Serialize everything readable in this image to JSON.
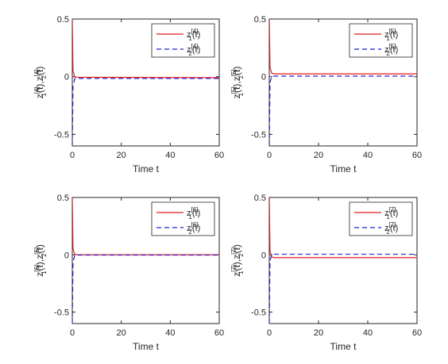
{
  "colors": {
    "series1": "#e31a1c",
    "series2": "#1f1fd6",
    "axis": "#262626"
  },
  "chart_data": [
    {
      "type": "line",
      "index": "4",
      "xlabel": "Time t",
      "ylabel": {
        "base1": "z",
        "sub1": "1",
        "sup1": "[4]",
        "mid": "(t),",
        "base2": "z",
        "sub2": "2",
        "sup2": "[4]",
        "end": "(t)"
      },
      "xlim": [
        0,
        60
      ],
      "ylim": [
        -0.6,
        0.5
      ],
      "xticks": [
        "0",
        "20",
        "40",
        "60"
      ],
      "yticks": [
        "-0.5",
        "0",
        "0.5"
      ],
      "legend_position": "top-right",
      "series": [
        {
          "label": {
            "base": "z",
            "sub": "1",
            "sup": "[4]",
            "end": "(t)"
          },
          "style": "solid",
          "x": [
            0,
            0.3,
            1,
            2,
            60
          ],
          "y": [
            0.5,
            0.05,
            -0.003,
            -0.005,
            -0.008
          ]
        },
        {
          "label": {
            "base": "z",
            "sub": "2",
            "sup": "[4]",
            "end": "(t)"
          },
          "style": "dashed",
          "x": [
            0,
            0.3,
            1,
            2,
            60
          ],
          "y": [
            -0.6,
            -0.08,
            -0.018,
            -0.015,
            -0.015
          ]
        }
      ]
    },
    {
      "type": "line",
      "index": "5",
      "xlabel": "Time t",
      "ylabel": {
        "base1": "z",
        "sub1": "1",
        "sup1": "[5]",
        "mid": "(t),",
        "base2": "z",
        "sub2": "2",
        "sup2": "[5]",
        "end": "(t)"
      },
      "xlim": [
        0,
        60
      ],
      "ylim": [
        -0.6,
        0.5
      ],
      "xticks": [
        "0",
        "20",
        "40",
        "60"
      ],
      "yticks": [
        "-0.5",
        "0",
        "0.5"
      ],
      "legend_position": "top-right",
      "series": [
        {
          "label": {
            "base": "z",
            "sub": "1",
            "sup": "[5]",
            "end": "(t)"
          },
          "style": "solid",
          "x": [
            0,
            0.3,
            1,
            2,
            60
          ],
          "y": [
            0.5,
            0.08,
            0.03,
            0.025,
            0.025
          ]
        },
        {
          "label": {
            "base": "z",
            "sub": "2",
            "sup": "[5]",
            "end": "(t)"
          },
          "style": "dashed",
          "x": [
            0,
            0.3,
            1,
            2,
            60
          ],
          "y": [
            -0.6,
            -0.05,
            0.002,
            0.005,
            0.005
          ]
        }
      ]
    },
    {
      "type": "line",
      "index": "6",
      "xlabel": "Time t",
      "ylabel": {
        "base1": "z",
        "sub1": "1",
        "sup1": "[6]",
        "mid": "(t),",
        "base2": "z",
        "sub2": "2",
        "sup2": "[6]",
        "end": "(t)"
      },
      "xlim": [
        0,
        60
      ],
      "ylim": [
        -0.6,
        0.5
      ],
      "xticks": [
        "0",
        "20",
        "40",
        "60"
      ],
      "yticks": [
        "-0.5",
        "0",
        "0.5"
      ],
      "legend_position": "top-right",
      "series": [
        {
          "label": {
            "base": "z",
            "sub": "1",
            "sup": "[6]",
            "end": "(t)"
          },
          "style": "solid",
          "x": [
            0,
            0.3,
            1,
            2,
            60
          ],
          "y": [
            0.5,
            0.05,
            0.005,
            0.0,
            0.0
          ]
        },
        {
          "label": {
            "base": "z",
            "sub": "2",
            "sup": "[6]",
            "end": "(t)"
          },
          "style": "dashed",
          "x": [
            0,
            0.3,
            1,
            2,
            60
          ],
          "y": [
            -0.6,
            -0.06,
            -0.005,
            -0.003,
            -0.003
          ]
        }
      ]
    },
    {
      "type": "line",
      "index": "7",
      "xlabel": "Time t",
      "ylabel": {
        "base1": "z",
        "sub1": "1",
        "sup1": "[7]",
        "mid": "(t),",
        "base2": "z",
        "sub2": "2",
        "sup2": "[7]",
        "end": "(t)"
      },
      "xlim": [
        0,
        60
      ],
      "ylim": [
        -0.6,
        0.5
      ],
      "xticks": [
        "0",
        "20",
        "40",
        "60"
      ],
      "yticks": [
        "-0.5",
        "0",
        "0.5"
      ],
      "legend_position": "top-right",
      "series": [
        {
          "label": {
            "base": "z",
            "sub": "1",
            "sup": "[7]",
            "end": "(t)"
          },
          "style": "solid",
          "x": [
            0,
            0.3,
            1,
            2,
            60
          ],
          "y": [
            0.5,
            0.03,
            -0.02,
            -0.025,
            -0.025
          ]
        },
        {
          "label": {
            "base": "z",
            "sub": "2",
            "sup": "[7]",
            "end": "(t)"
          },
          "style": "dashed",
          "x": [
            0,
            0.3,
            1,
            2,
            60
          ],
          "y": [
            -0.6,
            -0.05,
            0.0,
            0.005,
            0.005
          ]
        }
      ]
    }
  ]
}
